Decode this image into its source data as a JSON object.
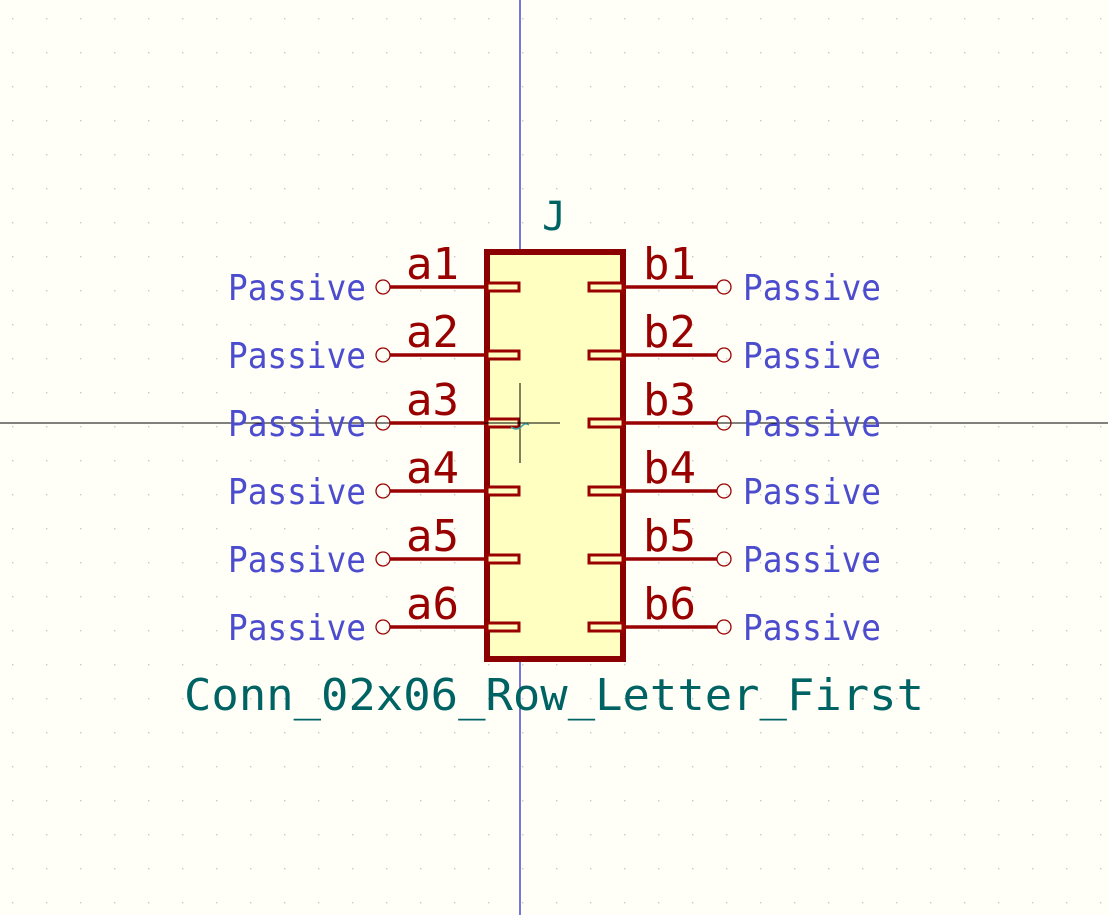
{
  "symbol": {
    "reference": "J",
    "value": "Conn_02x06_Row_Letter_First",
    "colors": {
      "body_outline": "#8b0000",
      "body_fill": "#ffffc2",
      "pin_line": "#990000",
      "pin_text": "#990000",
      "pin_type_text": "#4c4ccf",
      "field_text": "#006363",
      "axis_line": "#1a1acc",
      "grid_dot": "#c8c8c8",
      "background": "#fffff8"
    },
    "pins_left": [
      {
        "number": "a1",
        "type": "Passive"
      },
      {
        "number": "a2",
        "type": "Passive"
      },
      {
        "number": "a3",
        "type": "Passive"
      },
      {
        "number": "a4",
        "type": "Passive"
      },
      {
        "number": "a5",
        "type": "Passive"
      },
      {
        "number": "a6",
        "type": "Passive"
      }
    ],
    "pins_right": [
      {
        "number": "b1",
        "type": "Passive"
      },
      {
        "number": "b2",
        "type": "Passive"
      },
      {
        "number": "b3",
        "type": "Passive"
      },
      {
        "number": "b4",
        "type": "Passive"
      },
      {
        "number": "b5",
        "type": "Passive"
      },
      {
        "number": "b6",
        "type": "Passive"
      }
    ]
  }
}
